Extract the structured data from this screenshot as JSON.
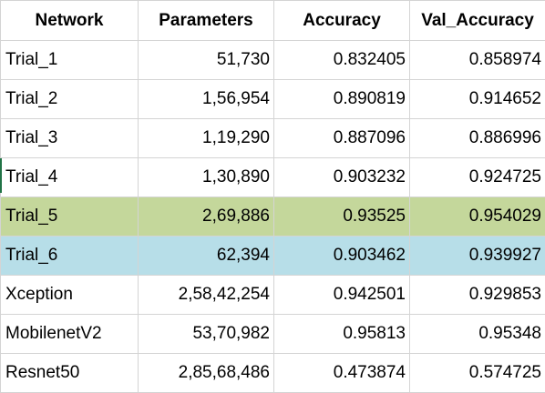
{
  "headers": [
    "Network",
    "Parameters",
    "Accuracy",
    "Val_Accuracy"
  ],
  "rows": [
    {
      "network": "Trial_1",
      "parameters": "51,730",
      "accuracy": "0.832405",
      "val_accuracy": "0.858974",
      "highlight": ""
    },
    {
      "network": "Trial_2",
      "parameters": "1,56,954",
      "accuracy": "0.890819",
      "val_accuracy": "0.914652",
      "highlight": ""
    },
    {
      "network": "Trial_3",
      "parameters": "1,19,290",
      "accuracy": "0.887096",
      "val_accuracy": "0.886996",
      "highlight": ""
    },
    {
      "network": "Trial_4",
      "parameters": "1,30,890",
      "accuracy": "0.903232",
      "val_accuracy": "0.924725",
      "highlight": ""
    },
    {
      "network": "Trial_5",
      "parameters": "2,69,886",
      "accuracy": "0.93525",
      "val_accuracy": "0.954029",
      "highlight": "#c4d79b"
    },
    {
      "network": "Trial_6",
      "parameters": "62,394",
      "accuracy": "0.903462",
      "val_accuracy": "0.939927",
      "highlight": "#b7dee8"
    },
    {
      "network": "Xception",
      "parameters": "2,58,42,254",
      "accuracy": "0.942501",
      "val_accuracy": "0.929853",
      "highlight": ""
    },
    {
      "network": "MobilenetV2",
      "parameters": "53,70,982",
      "accuracy": "0.95813",
      "val_accuracy": "0.95348",
      "highlight": ""
    },
    {
      "network": "Resnet50",
      "parameters": "2,85,68,486",
      "accuracy": "0.473874",
      "val_accuracy": "0.574725",
      "highlight": ""
    }
  ],
  "colors": {
    "gridline": "#d4d4d4",
    "trial5_fill": "#c4d79b",
    "trial6_fill": "#b7dee8"
  }
}
